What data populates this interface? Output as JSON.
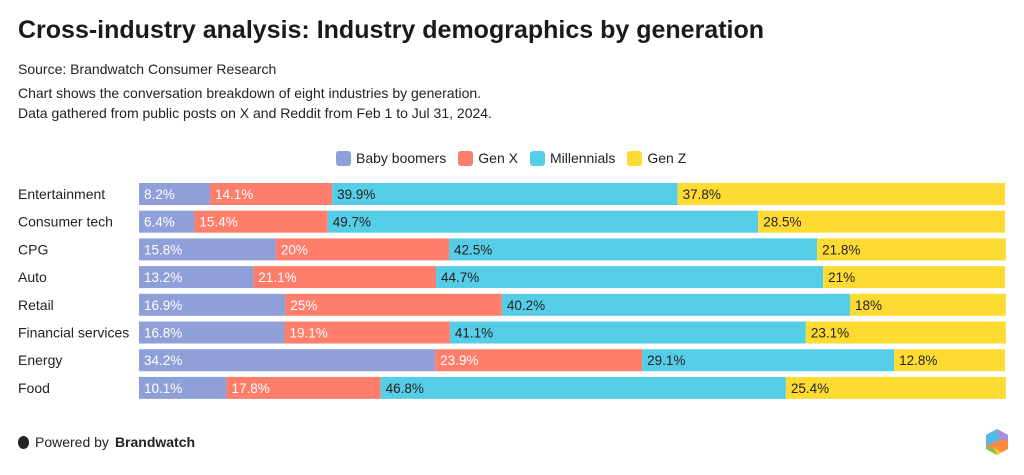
{
  "title": "Cross-industry analysis: Industry demographics by generation",
  "source": "Source: Brandwatch Consumer Research",
  "description": [
    "Chart shows the conversation breakdown of eight industries by generation.",
    "Data gathered from public posts on X and Reddit from Feb 1 to Jul 31, 2024."
  ],
  "footer": {
    "prefix": "Powered by",
    "brand": "Brandwatch"
  },
  "chart_data": {
    "type": "bar",
    "orientation": "horizontal",
    "stacked": true,
    "legend_position": "top",
    "xlim": [
      0,
      100
    ],
    "categories": [
      "Entertainment",
      "Consumer tech",
      "CPG",
      "Auto",
      "Retail",
      "Financial services",
      "Energy",
      "Food"
    ],
    "series": [
      {
        "name": "Baby boomers",
        "color": "#8f9fd7",
        "label_color": "#ffffff",
        "values": [
          8.2,
          6.4,
          15.8,
          13.2,
          16.9,
          16.8,
          34.2,
          10.1
        ]
      },
      {
        "name": "Gen X",
        "color": "#ff7e6b",
        "label_color": "#ffffff",
        "values": [
          14.1,
          15.4,
          20,
          21.1,
          25,
          19.1,
          23.9,
          17.8
        ]
      },
      {
        "name": "Millennials",
        "color": "#56cde6",
        "label_color": "#222222",
        "values": [
          39.9,
          49.7,
          42.5,
          44.7,
          40.2,
          41.1,
          29.1,
          46.8
        ]
      },
      {
        "name": "Gen Z",
        "color": "#fedb32",
        "label_color": "#222222",
        "values": [
          37.8,
          28.5,
          21.8,
          21,
          18,
          23.1,
          12.8,
          25.4
        ]
      }
    ]
  }
}
